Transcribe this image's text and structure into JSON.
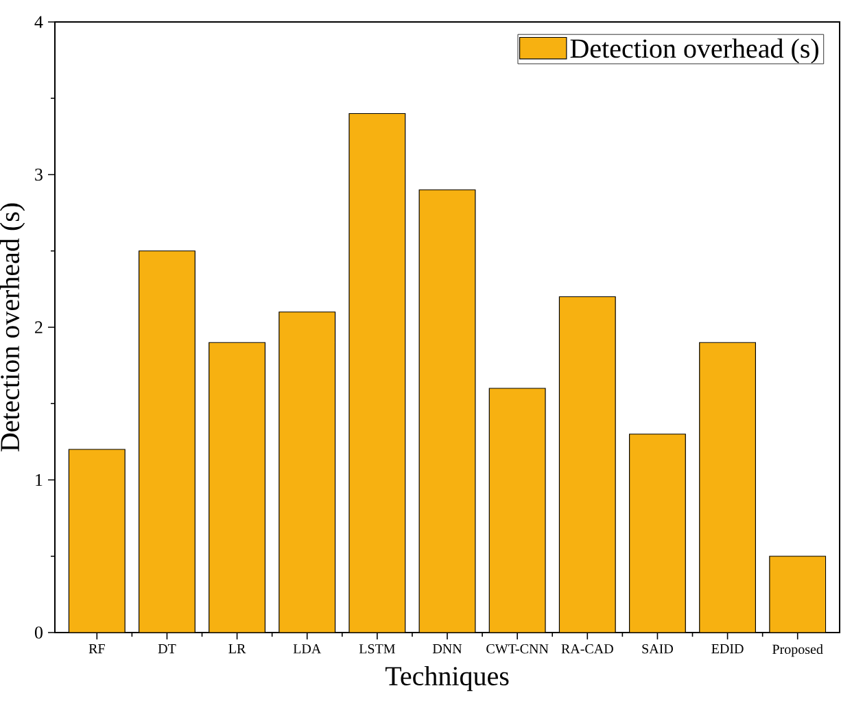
{
  "chart_data": {
    "type": "bar",
    "xlabel": "Techniques",
    "ylabel": "Detection overhead (s)",
    "categories": [
      "RF",
      "DT",
      "LR",
      "LDA",
      "LSTM",
      "DNN",
      "CWT-CNN",
      "RA-CAD",
      "SAID",
      "EDID",
      "Proposed"
    ],
    "series": [
      {
        "name": "Detection overhead (s)",
        "color": "#f7b111",
        "values": [
          1.2,
          2.5,
          1.9,
          2.1,
          3.4,
          2.9,
          1.6,
          2.2,
          1.3,
          1.9,
          0.5
        ]
      }
    ],
    "ylim": [
      0,
      4
    ],
    "yticks": [
      0,
      1,
      2,
      3,
      4
    ],
    "legend": "top right",
    "grid": false
  }
}
